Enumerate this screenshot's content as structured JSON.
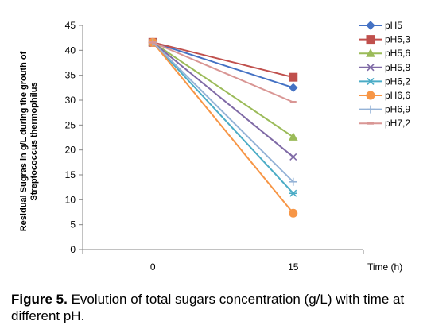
{
  "chart_data": {
    "type": "line",
    "x": [
      0,
      15
    ],
    "x_tick_labels": [
      "0",
      "15"
    ],
    "xlabel": "Time (h)",
    "ylabel_lines": [
      "Residual Sugras in g/L during the grouth of",
      "Streptococcus thermophilus"
    ],
    "ylim": [
      0,
      45
    ],
    "y_ticks": [
      0,
      5,
      10,
      15,
      20,
      25,
      30,
      35,
      40,
      45
    ],
    "legend_position": "right",
    "grid": false,
    "series": [
      {
        "name": "pH5",
        "values": [
          41.6,
          32.5
        ],
        "color": "#4472c4",
        "marker": "diamond"
      },
      {
        "name": "pH5,3",
        "values": [
          41.6,
          34.6
        ],
        "color": "#c0504d",
        "marker": "square"
      },
      {
        "name": "pH5,6",
        "values": [
          41.6,
          22.6
        ],
        "color": "#9bbb59",
        "marker": "triangle"
      },
      {
        "name": "pH5,8",
        "values": [
          41.6,
          18.6
        ],
        "color": "#7f6aa6",
        "marker": "x"
      },
      {
        "name": "pH6,2",
        "values": [
          41.6,
          11.3
        ],
        "color": "#4bacc6",
        "marker": "star"
      },
      {
        "name": "pH6,6",
        "values": [
          41.6,
          7.3
        ],
        "color": "#f79646",
        "marker": "circle"
      },
      {
        "name": "pH6,9",
        "values": [
          41.6,
          13.6
        ],
        "color": "#95b3d7",
        "marker": "plus"
      },
      {
        "name": "pH7,2",
        "values": [
          41.6,
          29.6
        ],
        "color": "#d99694",
        "marker": "dash"
      }
    ]
  },
  "caption": {
    "label": "Figure 5.",
    "text": " Evolution of total sugars concentration (g/L) with time at different pH."
  }
}
